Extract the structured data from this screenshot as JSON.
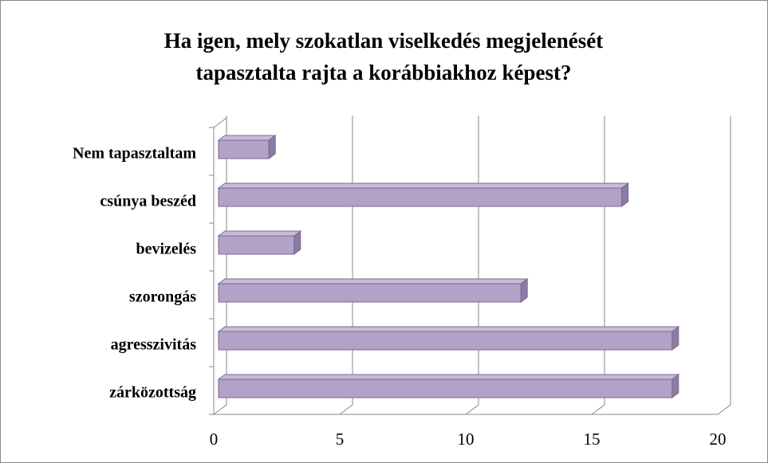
{
  "chart_data": {
    "type": "bar3d_horizontal",
    "title": [
      "Ha igen, mely szokatlan viselkedés megjelenését",
      "tapasztalta rajta a korábbiakhoz képest?"
    ],
    "categories": [
      "Nem tapasztaltam",
      "csúnya beszéd",
      "bevizelés",
      "szorongás",
      "agresszivitás",
      "zárközottság"
    ],
    "values": [
      2,
      16,
      3,
      12,
      18,
      18
    ],
    "color": "#b3a2c7",
    "xlim": [
      0,
      20
    ],
    "xticks": [
      0,
      5,
      10,
      15,
      20
    ],
    "grid": true
  }
}
